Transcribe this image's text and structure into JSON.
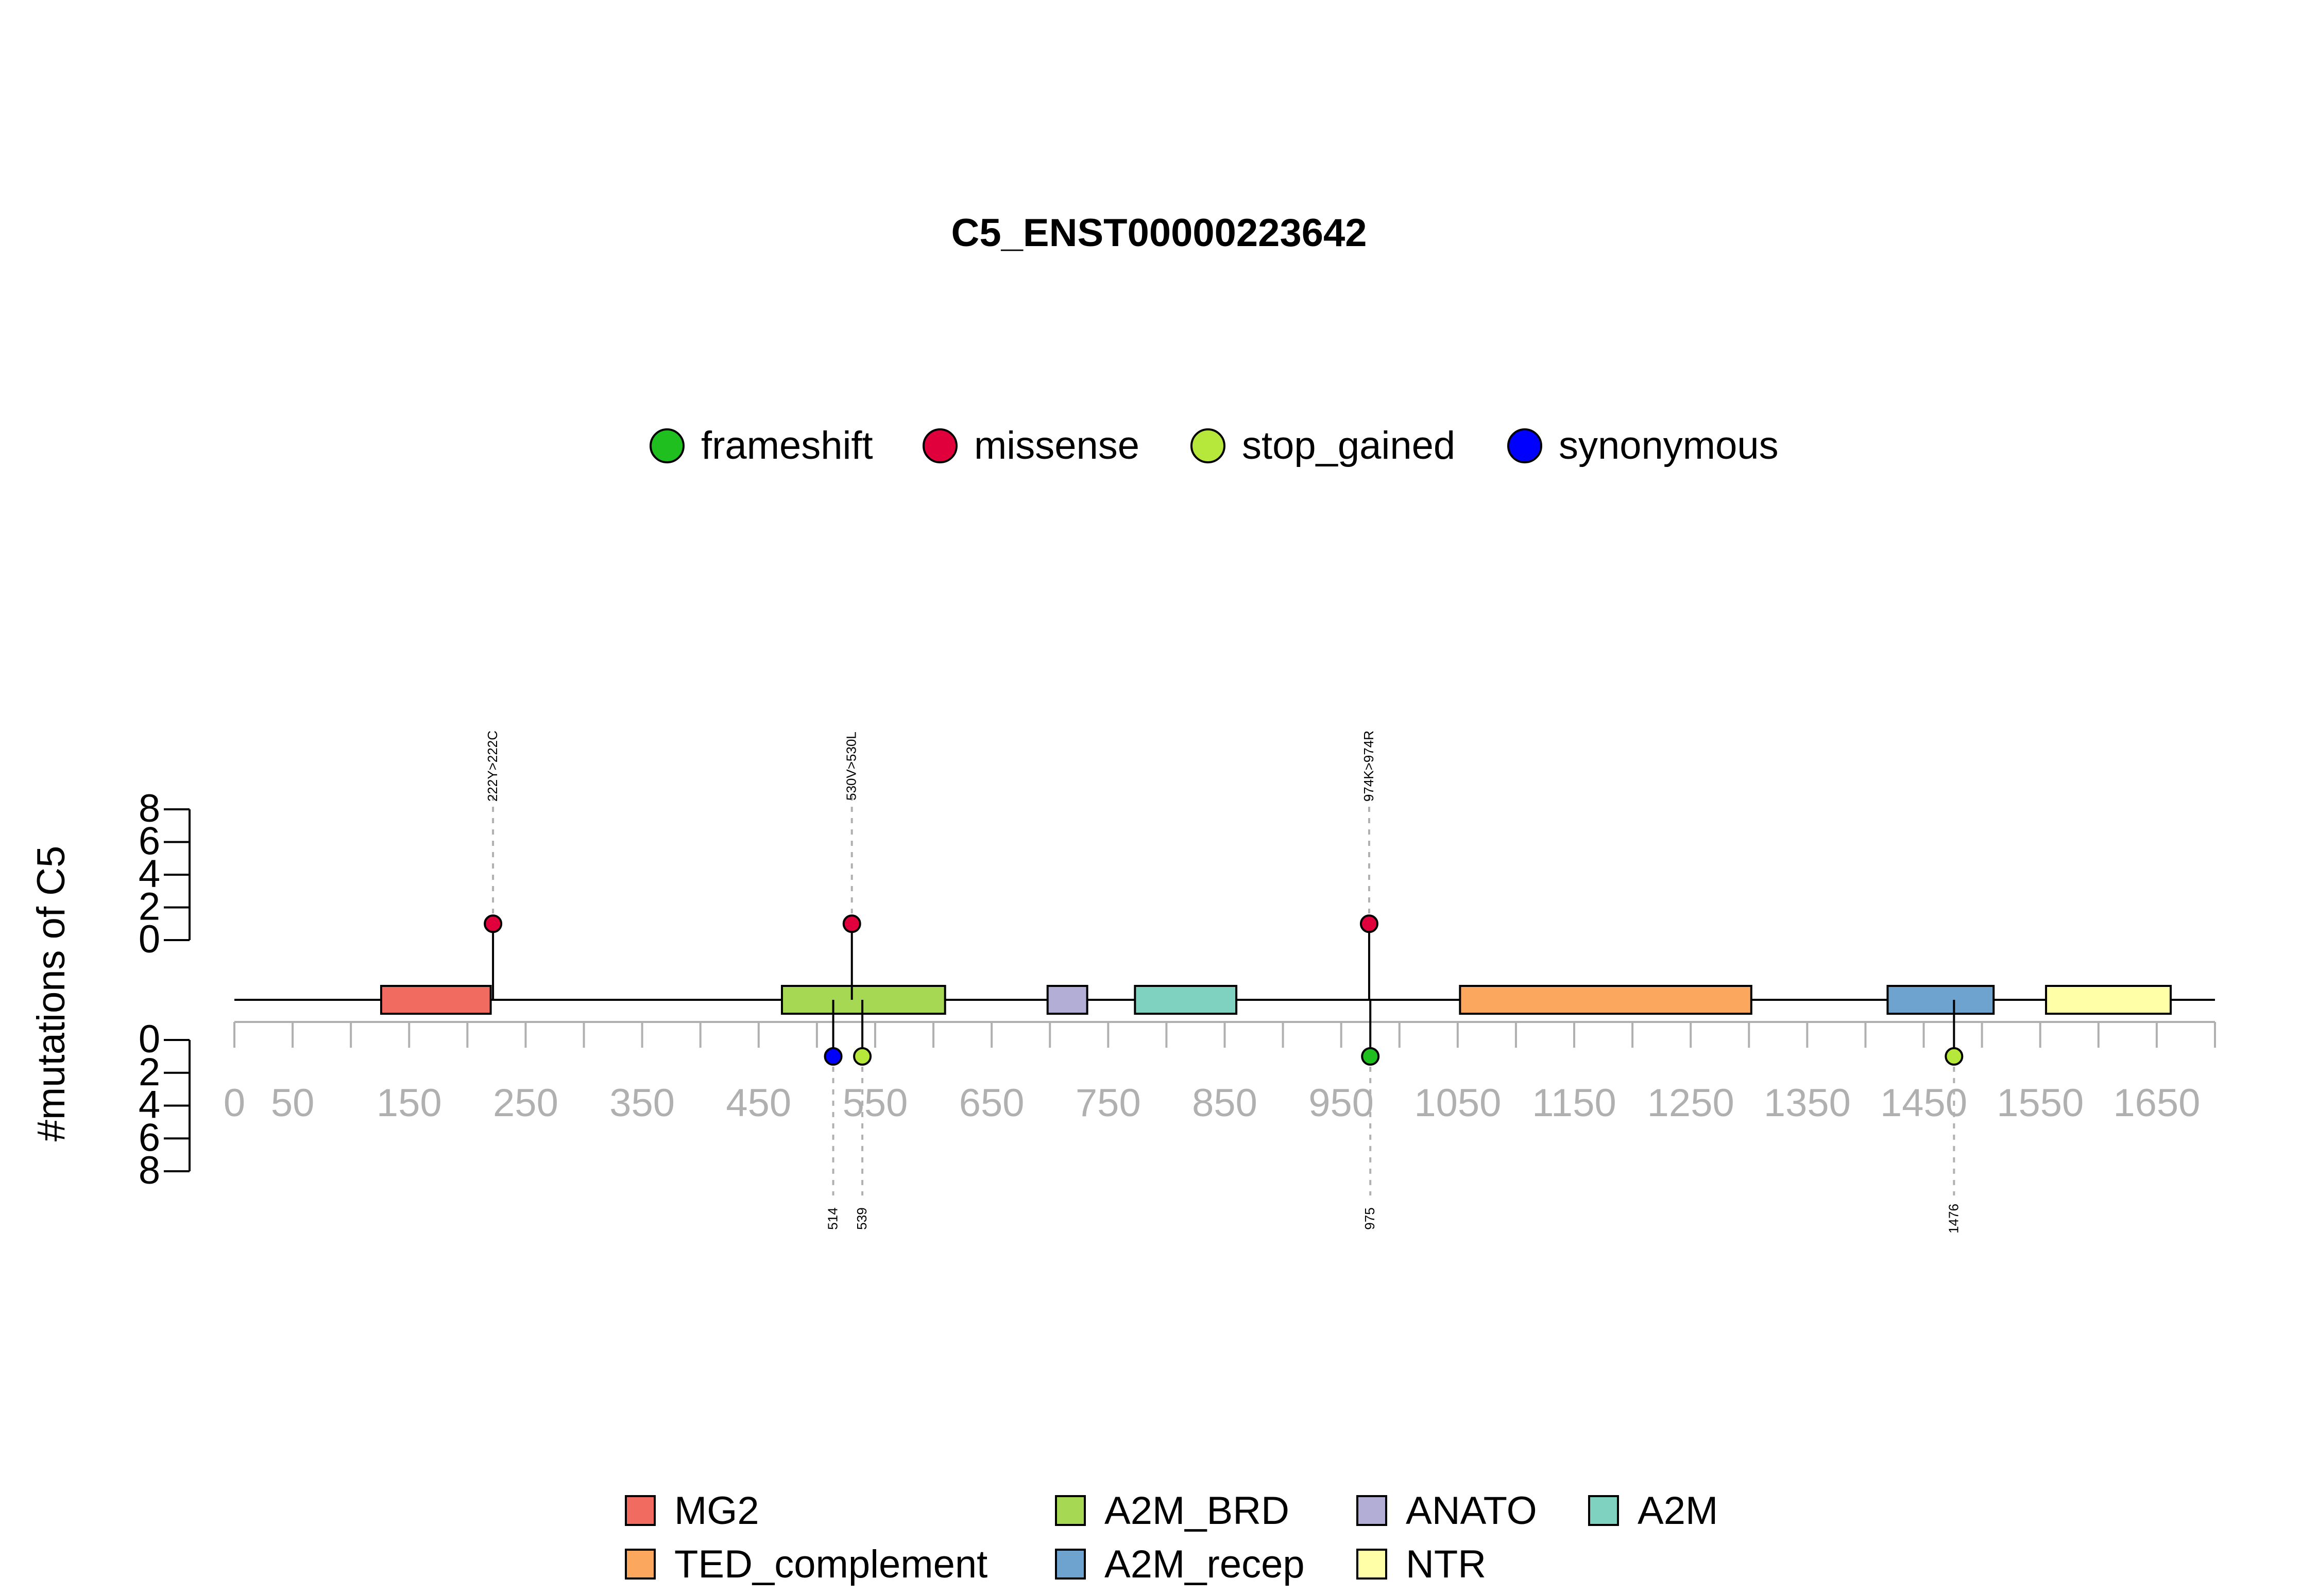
{
  "chart_data": {
    "type": "lollipop",
    "title": "C5_ENST00000223642",
    "ylabel": "#mutations of C5",
    "protein_length": 1700,
    "x_ticks": [
      0,
      50,
      150,
      250,
      350,
      450,
      550,
      650,
      750,
      850,
      950,
      1050,
      1150,
      1250,
      1350,
      1450,
      1550,
      1650
    ],
    "y_ticks": [
      "0",
      "2",
      "4",
      "6",
      "8"
    ],
    "y_range": [
      0,
      8
    ],
    "mutation_types": [
      {
        "name": "frameshift",
        "color": "#1fbf1f"
      },
      {
        "name": "missense",
        "color": "#e0003b"
      },
      {
        "name": "stop_gained",
        "color": "#b5e83a"
      },
      {
        "name": "synonymous",
        "color": "#0000ff"
      }
    ],
    "domains": [
      {
        "name": "MG2",
        "start": 126,
        "end": 220,
        "color": "#f26b60"
      },
      {
        "name": "A2M_BRD",
        "start": 470,
        "end": 610,
        "color": "#a6d854"
      },
      {
        "name": "ANATO",
        "start": 698,
        "end": 732,
        "color": "#b3aed6"
      },
      {
        "name": "A2M",
        "start": 773,
        "end": 860,
        "color": "#7fd1c0"
      },
      {
        "name": "TED_complement",
        "start": 1052,
        "end": 1302,
        "color": "#fba75d"
      },
      {
        "name": "A2M_recep",
        "start": 1419,
        "end": 1510,
        "color": "#6ea3cf"
      },
      {
        "name": "NTR",
        "start": 1555,
        "end": 1662,
        "color": "#ffffa8"
      }
    ],
    "legend_domains": [
      "MG2",
      "A2M_BRD",
      "ANATO",
      "A2M",
      "TED_complement",
      "A2M_recep",
      "NTR"
    ],
    "mutations_top": [
      {
        "position": 222,
        "count": 1,
        "type": "missense",
        "label": "222Y>222C"
      },
      {
        "position": 530,
        "count": 1,
        "type": "missense",
        "label": "530V>530L"
      },
      {
        "position": 974,
        "count": 1,
        "type": "missense",
        "label": "974K>974R"
      }
    ],
    "mutations_bottom": [
      {
        "position": 514,
        "count": 1,
        "type": "synonymous",
        "label": "514"
      },
      {
        "position": 539,
        "count": 1,
        "type": "stop_gained",
        "label": "539"
      },
      {
        "position": 975,
        "count": 1,
        "type": "frameshift",
        "label": "975"
      },
      {
        "position": 1476,
        "count": 1,
        "type": "stop_gained",
        "label": "1476"
      }
    ]
  }
}
